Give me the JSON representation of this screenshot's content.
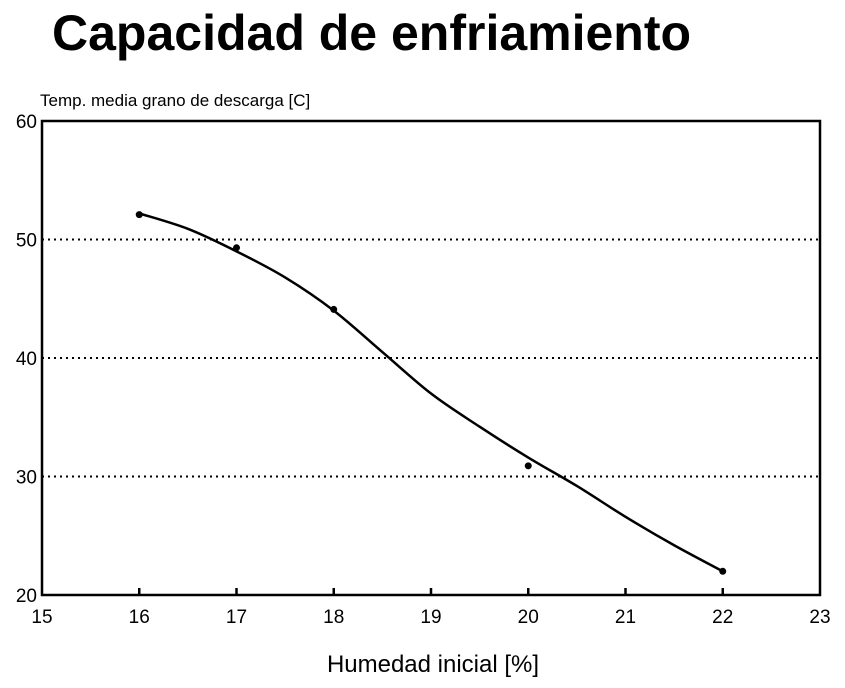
{
  "chart_data": {
    "type": "line",
    "title": "Capacidad de enfriamiento",
    "xlabel": "Humedad inicial [%]",
    "ylabel": "Temp. media grano de descarga [C]",
    "xlim": [
      15,
      23
    ],
    "ylim": [
      20,
      60
    ],
    "xticks": [
      15,
      16,
      17,
      18,
      19,
      20,
      21,
      22,
      23
    ],
    "yticks": [
      20,
      30,
      40,
      50,
      60
    ],
    "grid": "horizontal dotted",
    "legend": "none",
    "series": [
      {
        "kind": "points",
        "x": [
          16,
          17,
          18,
          20,
          22
        ],
        "y": [
          52.1,
          49.3,
          44.1,
          30.9,
          22.0
        ]
      },
      {
        "kind": "smooth-fit",
        "x": [
          16,
          16.5,
          17,
          17.5,
          18,
          18.5,
          19,
          19.5,
          20,
          20.5,
          21,
          21.5,
          22
        ],
        "y": [
          52.2,
          50.9,
          49.0,
          46.8,
          44.0,
          40.5,
          37.0,
          34.2,
          31.6,
          29.2,
          26.6,
          24.2,
          22.0
        ]
      }
    ],
    "color": "#000000"
  }
}
